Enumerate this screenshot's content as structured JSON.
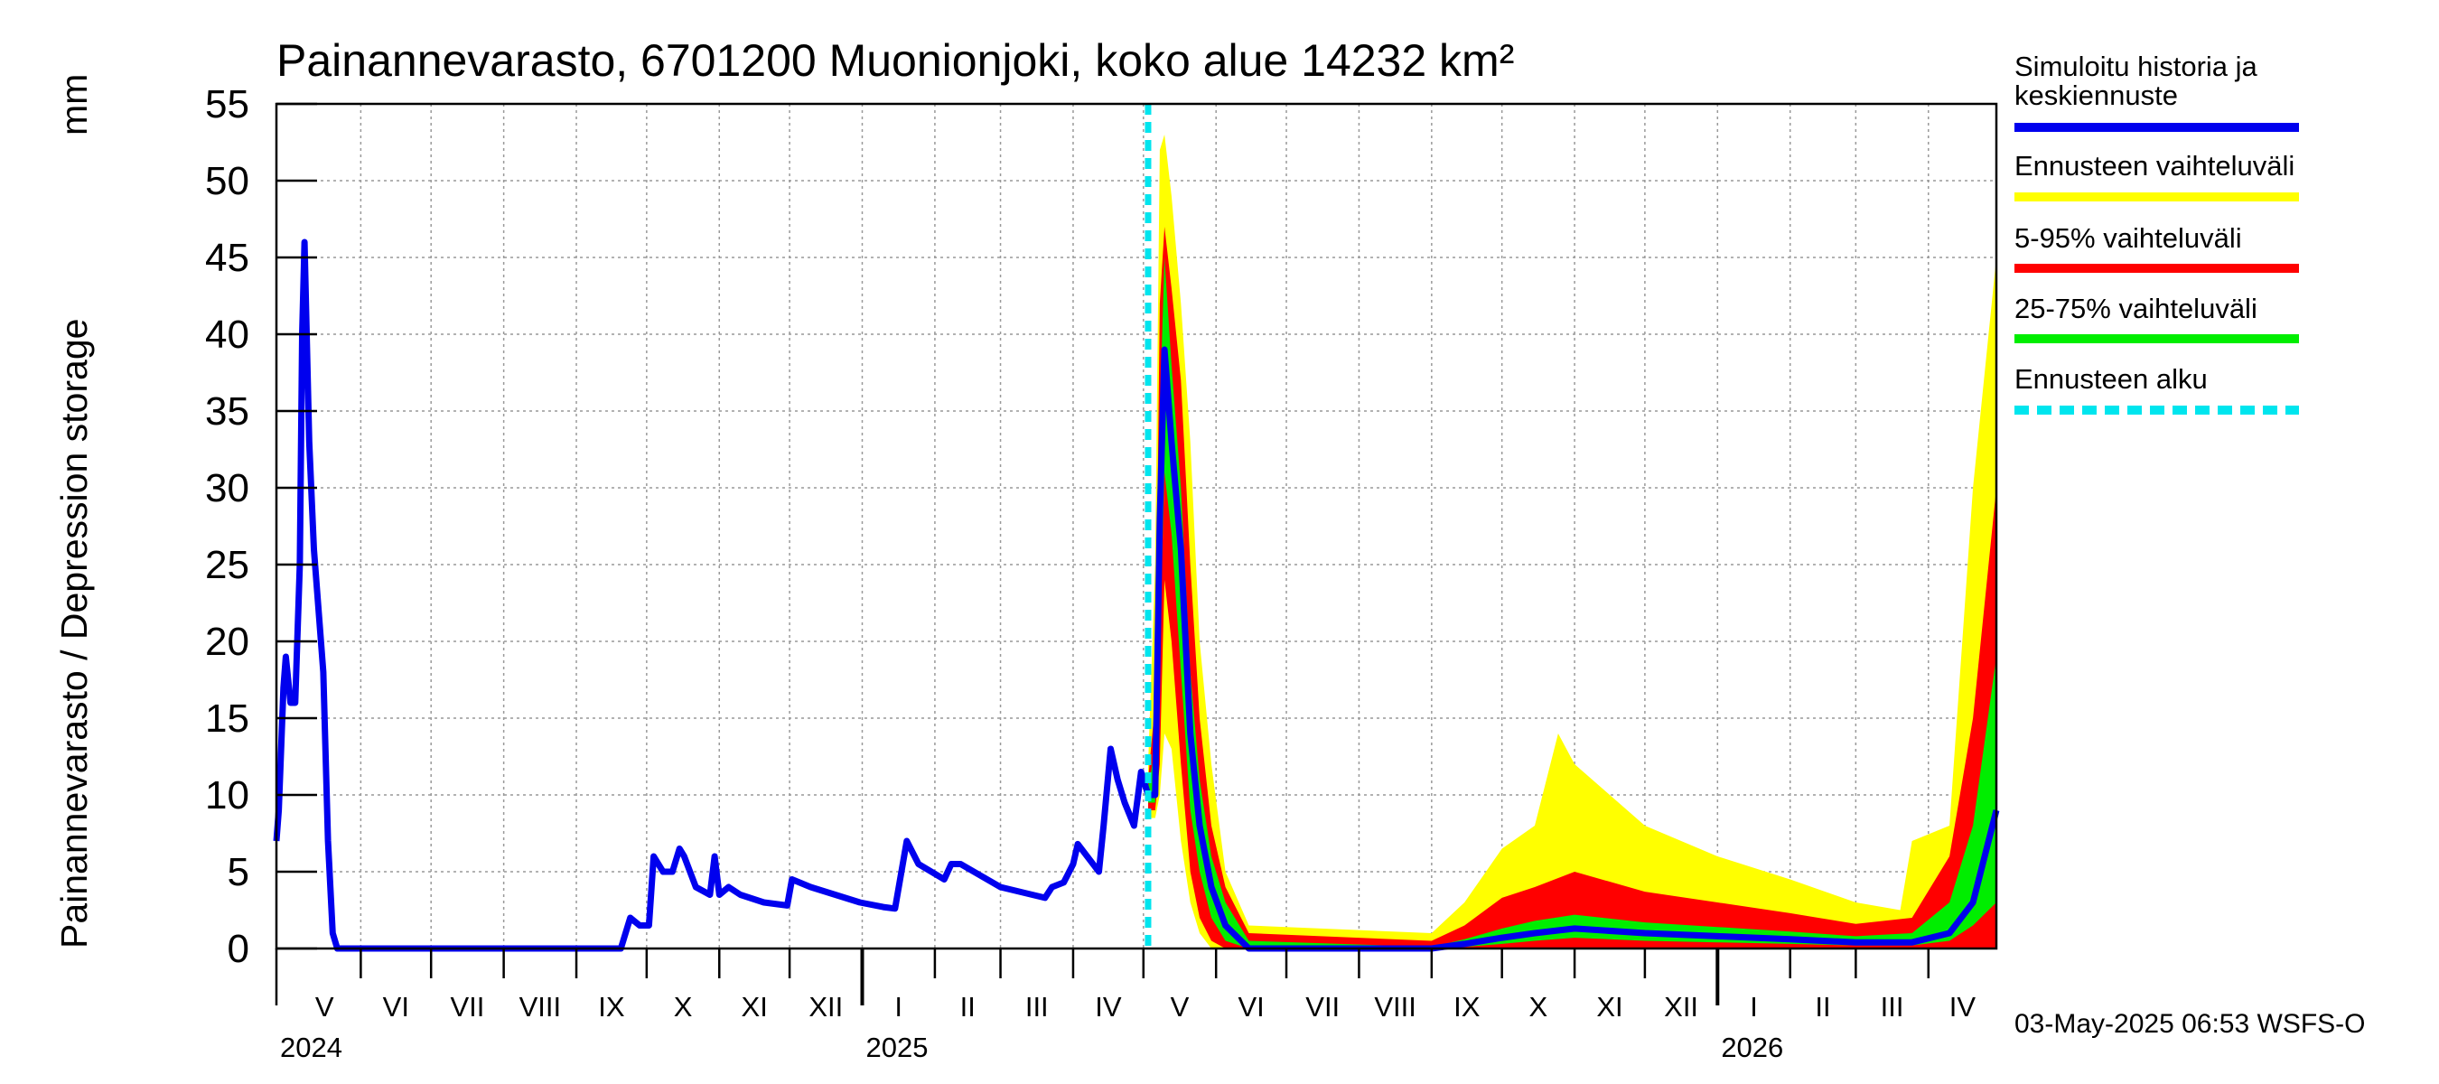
{
  "chart_data": {
    "type": "area",
    "title": "Painannevarasto, 6701200 Muonionjoki, koko alue 14232 km²",
    "ylabel": "Painannevarasto / Depression storage",
    "yunit": "mm",
    "ylim": [
      0,
      55
    ],
    "yticks": [
      0,
      5,
      10,
      15,
      20,
      25,
      30,
      35,
      40,
      45,
      50,
      55
    ],
    "xlim": [
      "2024-04-26",
      "2026-04-30"
    ],
    "grid": true,
    "legend_position": "right",
    "timestamp": "03-May-2025 06:53 WSFS-O",
    "month_labels": [
      "V",
      "VI",
      "VII",
      "VIII",
      "IX",
      "X",
      "XI",
      "XII",
      "I",
      "II",
      "III",
      "IV",
      "V",
      "VI",
      "VII",
      "VIII",
      "IX",
      "X",
      "XI",
      "XII",
      "I",
      "II",
      "III",
      "IV"
    ],
    "year_labels": [
      "2024",
      "2025",
      "2026"
    ],
    "forecast_start": "2025-05-03",
    "colors": {
      "history": "#0000ee",
      "range_full": "#ffff00",
      "range_5_95": "#ff0000",
      "range_25_75": "#00ee00",
      "forecast_start": "#00e5ee",
      "grid": "#999999"
    },
    "legend": [
      {
        "label": "Simuloitu historia ja keskiennuste",
        "color": "#0000ee",
        "style": "solid"
      },
      {
        "label": "Ennusteen vaihteluväli",
        "color": "#ffff00",
        "style": "solid"
      },
      {
        "label": "5-95% vaihteluväli",
        "color": "#ff0000",
        "style": "solid"
      },
      {
        "label": "25-75% vaihteluväli",
        "color": "#00ee00",
        "style": "solid"
      },
      {
        "label": "Ennusteen alku",
        "color": "#00e5ee",
        "style": "dashed"
      }
    ],
    "history": [
      [
        "2024-04-26",
        7
      ],
      [
        "2024-04-27",
        9
      ],
      [
        "2024-04-29",
        17
      ],
      [
        "2024-04-30",
        19
      ],
      [
        "2024-05-02",
        16
      ],
      [
        "2024-05-04",
        16
      ],
      [
        "2024-05-06",
        25
      ],
      [
        "2024-05-07",
        40
      ],
      [
        "2024-05-08",
        46
      ],
      [
        "2024-05-10",
        33
      ],
      [
        "2024-05-12",
        26
      ],
      [
        "2024-05-16",
        18
      ],
      [
        "2024-05-18",
        7
      ],
      [
        "2024-05-20",
        1
      ],
      [
        "2024-05-22",
        0
      ],
      [
        "2024-09-20",
        0
      ],
      [
        "2024-09-24",
        2
      ],
      [
        "2024-09-28",
        1.5
      ],
      [
        "2024-10-02",
        1.5
      ],
      [
        "2024-10-04",
        6
      ],
      [
        "2024-10-08",
        5
      ],
      [
        "2024-10-12",
        5
      ],
      [
        "2024-10-15",
        6.5
      ],
      [
        "2024-10-17",
        6
      ],
      [
        "2024-10-22",
        4
      ],
      [
        "2024-10-28",
        3.5
      ],
      [
        "2024-10-30",
        6
      ],
      [
        "2024-11-01",
        3.5
      ],
      [
        "2024-11-05",
        4
      ],
      [
        "2024-11-10",
        3.5
      ],
      [
        "2024-11-20",
        3
      ],
      [
        "2024-11-30",
        2.8
      ],
      [
        "2024-12-02",
        4.5
      ],
      [
        "2024-12-10",
        4
      ],
      [
        "2024-12-31",
        3
      ],
      [
        "2025-01-10",
        2.7
      ],
      [
        "2025-01-15",
        2.6
      ],
      [
        "2025-01-20",
        7
      ],
      [
        "2025-01-25",
        5.5
      ],
      [
        "2025-02-05",
        4.5
      ],
      [
        "2025-02-08",
        5.5
      ],
      [
        "2025-02-12",
        5.5
      ],
      [
        "2025-03-01",
        4
      ],
      [
        "2025-03-20",
        3.3
      ],
      [
        "2025-03-23",
        4
      ],
      [
        "2025-03-28",
        4.3
      ],
      [
        "2025-04-01",
        5.5
      ],
      [
        "2025-04-03",
        6.8
      ],
      [
        "2025-04-07",
        6
      ],
      [
        "2025-04-12",
        5
      ],
      [
        "2025-04-14",
        8
      ],
      [
        "2025-04-17",
        13
      ],
      [
        "2025-04-20",
        11
      ],
      [
        "2025-04-23",
        9.5
      ],
      [
        "2025-04-27",
        8
      ],
      [
        "2025-04-30",
        11.5
      ],
      [
        "2025-05-03",
        10
      ]
    ],
    "forecast_median": [
      [
        "2025-05-03",
        10
      ],
      [
        "2025-05-06",
        10
      ],
      [
        "2025-05-08",
        28
      ],
      [
        "2025-05-10",
        39
      ],
      [
        "2025-05-13",
        33
      ],
      [
        "2025-05-17",
        26
      ],
      [
        "2025-05-21",
        14
      ],
      [
        "2025-05-25",
        8
      ],
      [
        "2025-05-30",
        4
      ],
      [
        "2025-06-05",
        1.5
      ],
      [
        "2025-06-15",
        0
      ],
      [
        "2025-09-01",
        0
      ],
      [
        "2025-09-15",
        0.3
      ],
      [
        "2025-10-01",
        0.7
      ],
      [
        "2025-10-15",
        1
      ],
      [
        "2025-11-01",
        1.3
      ],
      [
        "2025-12-01",
        1
      ],
      [
        "2026-01-01",
        0.8
      ],
      [
        "2026-02-01",
        0.6
      ],
      [
        "2026-03-01",
        0.4
      ],
      [
        "2026-03-25",
        0.4
      ],
      [
        "2026-04-10",
        1
      ],
      [
        "2026-04-20",
        3
      ],
      [
        "2026-04-30",
        9
      ]
    ],
    "band_25_75": [
      [
        "2025-05-03",
        9.5,
        10.5
      ],
      [
        "2025-05-06",
        9.5,
        13
      ],
      [
        "2025-05-08",
        20,
        35
      ],
      [
        "2025-05-10",
        31,
        45
      ],
      [
        "2025-05-13",
        27,
        38
      ],
      [
        "2025-05-17",
        18,
        30
      ],
      [
        "2025-05-21",
        9,
        18
      ],
      [
        "2025-05-25",
        5,
        11
      ],
      [
        "2025-05-30",
        2,
        6
      ],
      [
        "2025-06-05",
        0.5,
        3
      ],
      [
        "2025-06-15",
        0,
        0.5
      ],
      [
        "2025-09-01",
        0,
        0.1
      ],
      [
        "2025-09-15",
        0.1,
        0.6
      ],
      [
        "2025-10-01",
        0.3,
        1.3
      ],
      [
        "2025-10-15",
        0.5,
        1.8
      ],
      [
        "2025-11-01",
        0.7,
        2.2
      ],
      [
        "2025-12-01",
        0.5,
        1.7
      ],
      [
        "2026-01-01",
        0.4,
        1.4
      ],
      [
        "2026-02-01",
        0.3,
        1.1
      ],
      [
        "2026-03-01",
        0.2,
        0.8
      ],
      [
        "2026-03-25",
        0.2,
        1
      ],
      [
        "2026-04-10",
        0.5,
        3
      ],
      [
        "2026-04-20",
        1.5,
        8
      ],
      [
        "2026-04-30",
        3,
        19
      ]
    ],
    "band_5_95": [
      [
        "2025-05-03",
        9,
        11
      ],
      [
        "2025-05-06",
        9,
        16
      ],
      [
        "2025-05-08",
        12,
        42
      ],
      [
        "2025-05-10",
        24,
        47
      ],
      [
        "2025-05-13",
        20,
        43
      ],
      [
        "2025-05-17",
        12,
        37
      ],
      [
        "2025-05-21",
        5,
        25
      ],
      [
        "2025-05-25",
        2,
        15
      ],
      [
        "2025-05-30",
        0.5,
        8
      ],
      [
        "2025-06-05",
        0,
        4
      ],
      [
        "2025-06-15",
        0,
        1
      ],
      [
        "2025-09-01",
        0,
        0.5
      ],
      [
        "2025-09-15",
        0,
        1.5
      ],
      [
        "2025-10-01",
        0,
        3.3
      ],
      [
        "2025-10-15",
        0,
        4
      ],
      [
        "2025-11-01",
        0,
        5
      ],
      [
        "2025-12-01",
        0,
        3.7
      ],
      [
        "2026-01-01",
        0,
        3
      ],
      [
        "2026-02-01",
        0,
        2.3
      ],
      [
        "2026-03-01",
        0,
        1.6
      ],
      [
        "2026-03-25",
        0,
        2
      ],
      [
        "2026-04-10",
        0,
        6
      ],
      [
        "2026-04-20",
        0,
        15
      ],
      [
        "2026-04-30",
        0,
        30
      ]
    ],
    "band_full": [
      [
        "2025-05-03",
        8.5,
        12
      ],
      [
        "2025-05-06",
        8.5,
        25
      ],
      [
        "2025-05-08",
        10,
        52
      ],
      [
        "2025-05-10",
        14,
        53
      ],
      [
        "2025-05-13",
        13,
        49
      ],
      [
        "2025-05-17",
        7,
        42
      ],
      [
        "2025-05-21",
        3,
        33
      ],
      [
        "2025-05-25",
        1,
        20
      ],
      [
        "2025-05-30",
        0,
        12
      ],
      [
        "2025-06-05",
        0,
        5
      ],
      [
        "2025-06-15",
        0,
        1.5
      ],
      [
        "2025-09-01",
        0,
        1
      ],
      [
        "2025-09-15",
        0,
        3
      ],
      [
        "2025-10-01",
        0,
        6.5
      ],
      [
        "2025-10-15",
        0,
        8
      ],
      [
        "2025-10-25",
        0,
        14
      ],
      [
        "2025-11-01",
        0,
        12
      ],
      [
        "2025-12-01",
        0,
        8
      ],
      [
        "2026-01-01",
        0,
        6
      ],
      [
        "2026-02-01",
        0,
        4.5
      ],
      [
        "2026-03-01",
        0,
        3
      ],
      [
        "2026-03-20",
        0,
        2.5
      ],
      [
        "2026-03-25",
        0,
        7
      ],
      [
        "2026-04-10",
        0,
        8
      ],
      [
        "2026-04-20",
        0,
        30
      ],
      [
        "2026-04-30",
        0,
        45
      ]
    ]
  }
}
